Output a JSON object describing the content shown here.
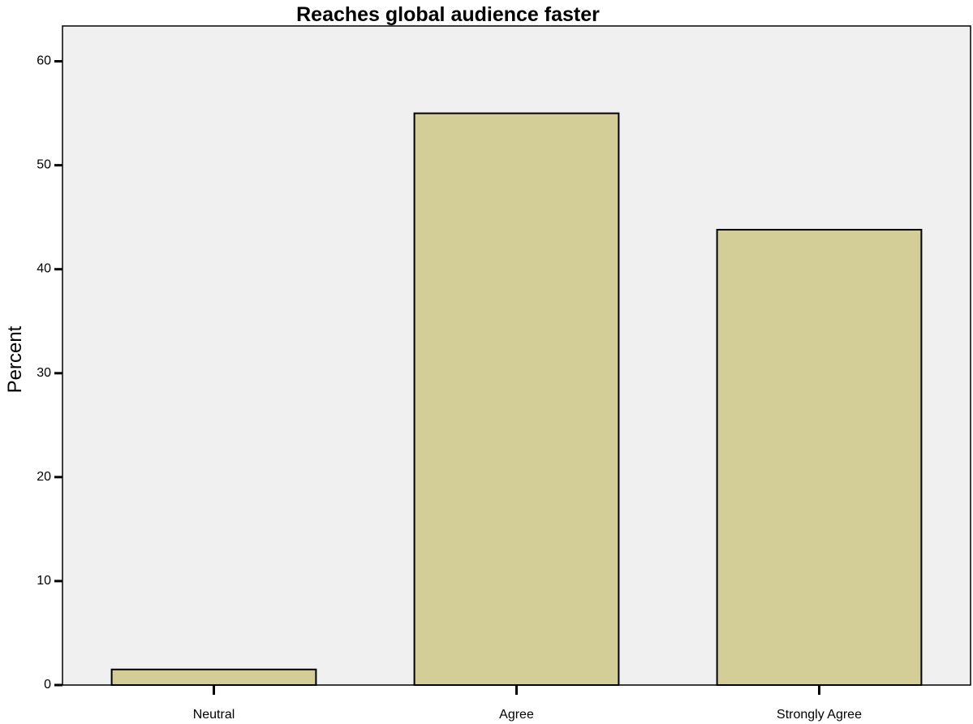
{
  "chart_data": {
    "type": "bar",
    "title": "Reaches global audience faster",
    "xlabel": "",
    "ylabel": "Percent",
    "categories": [
      "Neutral",
      "Agree",
      "Strongly Agree"
    ],
    "values": [
      1.5,
      55.0,
      43.8
    ],
    "ylim": [
      0,
      63.4
    ],
    "yticks": [
      0,
      10,
      20,
      30,
      40,
      50,
      60
    ],
    "grid": false,
    "legend": "none",
    "colors": {
      "bar_fill": "#d3ce97",
      "bar_stroke": "#000000",
      "plot_background": "#f0f0f0",
      "page_background": "#ffffff"
    }
  }
}
